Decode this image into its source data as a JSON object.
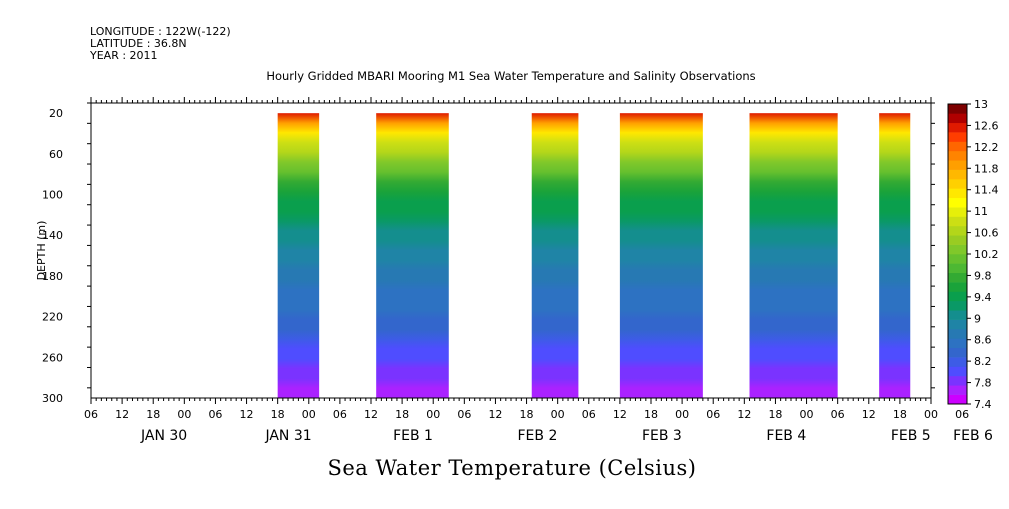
{
  "chart_data": {
    "type": "heatmap",
    "meta_lines": [
      "LONGITUDE : 122W(-122)",
      "LATITUDE : 36.8N",
      "YEAR : 2011"
    ],
    "title": "Hourly Gridded MBARI Mooring M1 Sea Water Temperature and Salinity Observations",
    "xlabel": "Sea Water Temperature (Celsius)",
    "ylabel": "DEPTH (m)",
    "x_range_hours": [
      0,
      162
    ],
    "x_origin_label": "JAN 30 06:00",
    "hour_tick_labels": [
      "06",
      "12",
      "18",
      "00",
      "06",
      "12",
      "18",
      "00",
      "06",
      "12",
      "18",
      "00",
      "06",
      "12",
      "18",
      "00",
      "06",
      "12",
      "18",
      "00",
      "06",
      "12",
      "18",
      "00",
      "06",
      "12",
      "18",
      "00",
      "06"
    ],
    "day_labels": [
      {
        "text": "JAN 30",
        "hours_from_start": 6
      },
      {
        "text": "JAN 31",
        "hours_from_start": 30
      },
      {
        "text": "FEB  1",
        "hours_from_start": 54
      },
      {
        "text": "FEB  2",
        "hours_from_start": 78
      },
      {
        "text": "FEB  3",
        "hours_from_start": 102
      },
      {
        "text": "FEB  4",
        "hours_from_start": 126
      },
      {
        "text": "FEB  5",
        "hours_from_start": 150
      },
      {
        "text": "FEB  6",
        "hours_from_start": 162
      }
    ],
    "ylim": [
      300,
      10
    ],
    "y_ticks": [
      20,
      60,
      100,
      140,
      180,
      220,
      260,
      300
    ],
    "data_depth_range": [
      20,
      300
    ],
    "data_segments": [
      {
        "start_hours": 36,
        "end_hours": 44
      },
      {
        "start_hours": 55,
        "end_hours": 69
      },
      {
        "start_hours": 85,
        "end_hours": 94
      },
      {
        "start_hours": 102,
        "end_hours": 118
      },
      {
        "start_hours": 127,
        "end_hours": 144
      },
      {
        "start_hours": 152,
        "end_hours": 158
      }
    ],
    "temperature_profile": [
      {
        "depth": 20,
        "temp": 12.6
      },
      {
        "depth": 30,
        "temp": 11.8
      },
      {
        "depth": 45,
        "temp": 11.0
      },
      {
        "depth": 60,
        "temp": 10.6
      },
      {
        "depth": 80,
        "temp": 10.0
      },
      {
        "depth": 100,
        "temp": 9.6
      },
      {
        "depth": 120,
        "temp": 9.3
      },
      {
        "depth": 150,
        "temp": 9.0
      },
      {
        "depth": 180,
        "temp": 8.7
      },
      {
        "depth": 220,
        "temp": 8.4
      },
      {
        "depth": 260,
        "temp": 8.0
      },
      {
        "depth": 300,
        "temp": 7.6
      }
    ],
    "colorbar": {
      "min": 7.4,
      "max": 13,
      "step": 0.2,
      "labels": [
        "13",
        "12.6",
        "12.2",
        "11.8",
        "11.4",
        "11",
        "10.6",
        "10.2",
        "9.8",
        "9.4",
        "9",
        "8.6",
        "8.2",
        "7.8",
        "7.4"
      ],
      "colors": [
        "#cc00ff",
        "#aa22ff",
        "#7a33ff",
        "#4f4dff",
        "#3d5ce6",
        "#3366cc",
        "#2d72c2",
        "#2779b3",
        "#1f84a6",
        "#148e8e",
        "#0a9966",
        "#0a9f4d",
        "#1aa33a",
        "#33aa33",
        "#4db833",
        "#66c02e",
        "#80c82a",
        "#99cc22",
        "#b3d61a",
        "#ccdf14",
        "#e6ef0a",
        "#ffff00",
        "#ffe800",
        "#ffd000",
        "#ffb800",
        "#ff9f00",
        "#ff8400",
        "#ff6600",
        "#ff3d00",
        "#e01a00",
        "#b00000",
        "#7d0000"
      ]
    },
    "grid": false
  }
}
